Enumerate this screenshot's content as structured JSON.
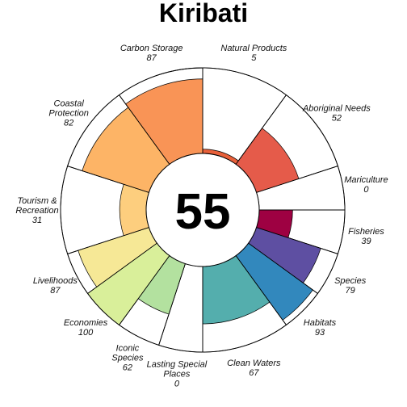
{
  "chart_data": {
    "type": "flower",
    "title": "Kiribati",
    "center_value": "55",
    "value_range": [
      0,
      100
    ],
    "petals": [
      {
        "label_lines": [
          "Natural Products"
        ],
        "value": 5,
        "value_text": "5",
        "color": "#E8603A",
        "weight": 1.0
      },
      {
        "label_lines": [
          "Aboriginal Needs"
        ],
        "value": 52,
        "value_text": "52",
        "color": "#E55B4A",
        "weight": 1.0
      },
      {
        "label_lines": [
          "Mariculture"
        ],
        "value": 0,
        "value_text": "0",
        "color": "#D53E4F",
        "weight": 0.5
      },
      {
        "label_lines": [
          "Fisheries"
        ],
        "value": 39,
        "value_text": "39",
        "color": "#9E0142",
        "weight": 0.5
      },
      {
        "label_lines": [
          "Species"
        ],
        "value": 79,
        "value_text": "79",
        "color": "#5E4FA2",
        "weight": 0.5
      },
      {
        "label_lines": [
          "Habitats"
        ],
        "value": 93,
        "value_text": "93",
        "color": "#3288BD",
        "weight": 0.5
      },
      {
        "label_lines": [
          "Clean Waters"
        ],
        "value": 67,
        "value_text": "67",
        "color": "#54AEAD",
        "weight": 1.0
      },
      {
        "label_lines": [
          "Lasting Special",
          "Places"
        ],
        "value": 0,
        "value_text": "0",
        "color": "#8FD2A4",
        "weight": 0.5
      },
      {
        "label_lines": [
          "Iconic",
          "Species"
        ],
        "value": 62,
        "value_text": "62",
        "color": "#B3E19F",
        "weight": 0.5
      },
      {
        "label_lines": [
          "Economies"
        ],
        "value": 100,
        "value_text": "100",
        "color": "#D9EF9A",
        "weight": 0.5
      },
      {
        "label_lines": [
          "Livelihoods"
        ],
        "value": 87,
        "value_text": "87",
        "color": "#F6E896",
        "weight": 0.5
      },
      {
        "label_lines": [
          "Tourism &",
          "Recreation"
        ],
        "value": 31,
        "value_text": "31",
        "color": "#FDCE7E",
        "weight": 1.0
      },
      {
        "label_lines": [
          "Coastal",
          "Protection"
        ],
        "value": 82,
        "value_text": "82",
        "color": "#FDB466",
        "weight": 1.0
      },
      {
        "label_lines": [
          "Carbon Storage"
        ],
        "value": 87,
        "value_text": "87",
        "color": "#F99456",
        "weight": 1.0
      }
    ]
  }
}
